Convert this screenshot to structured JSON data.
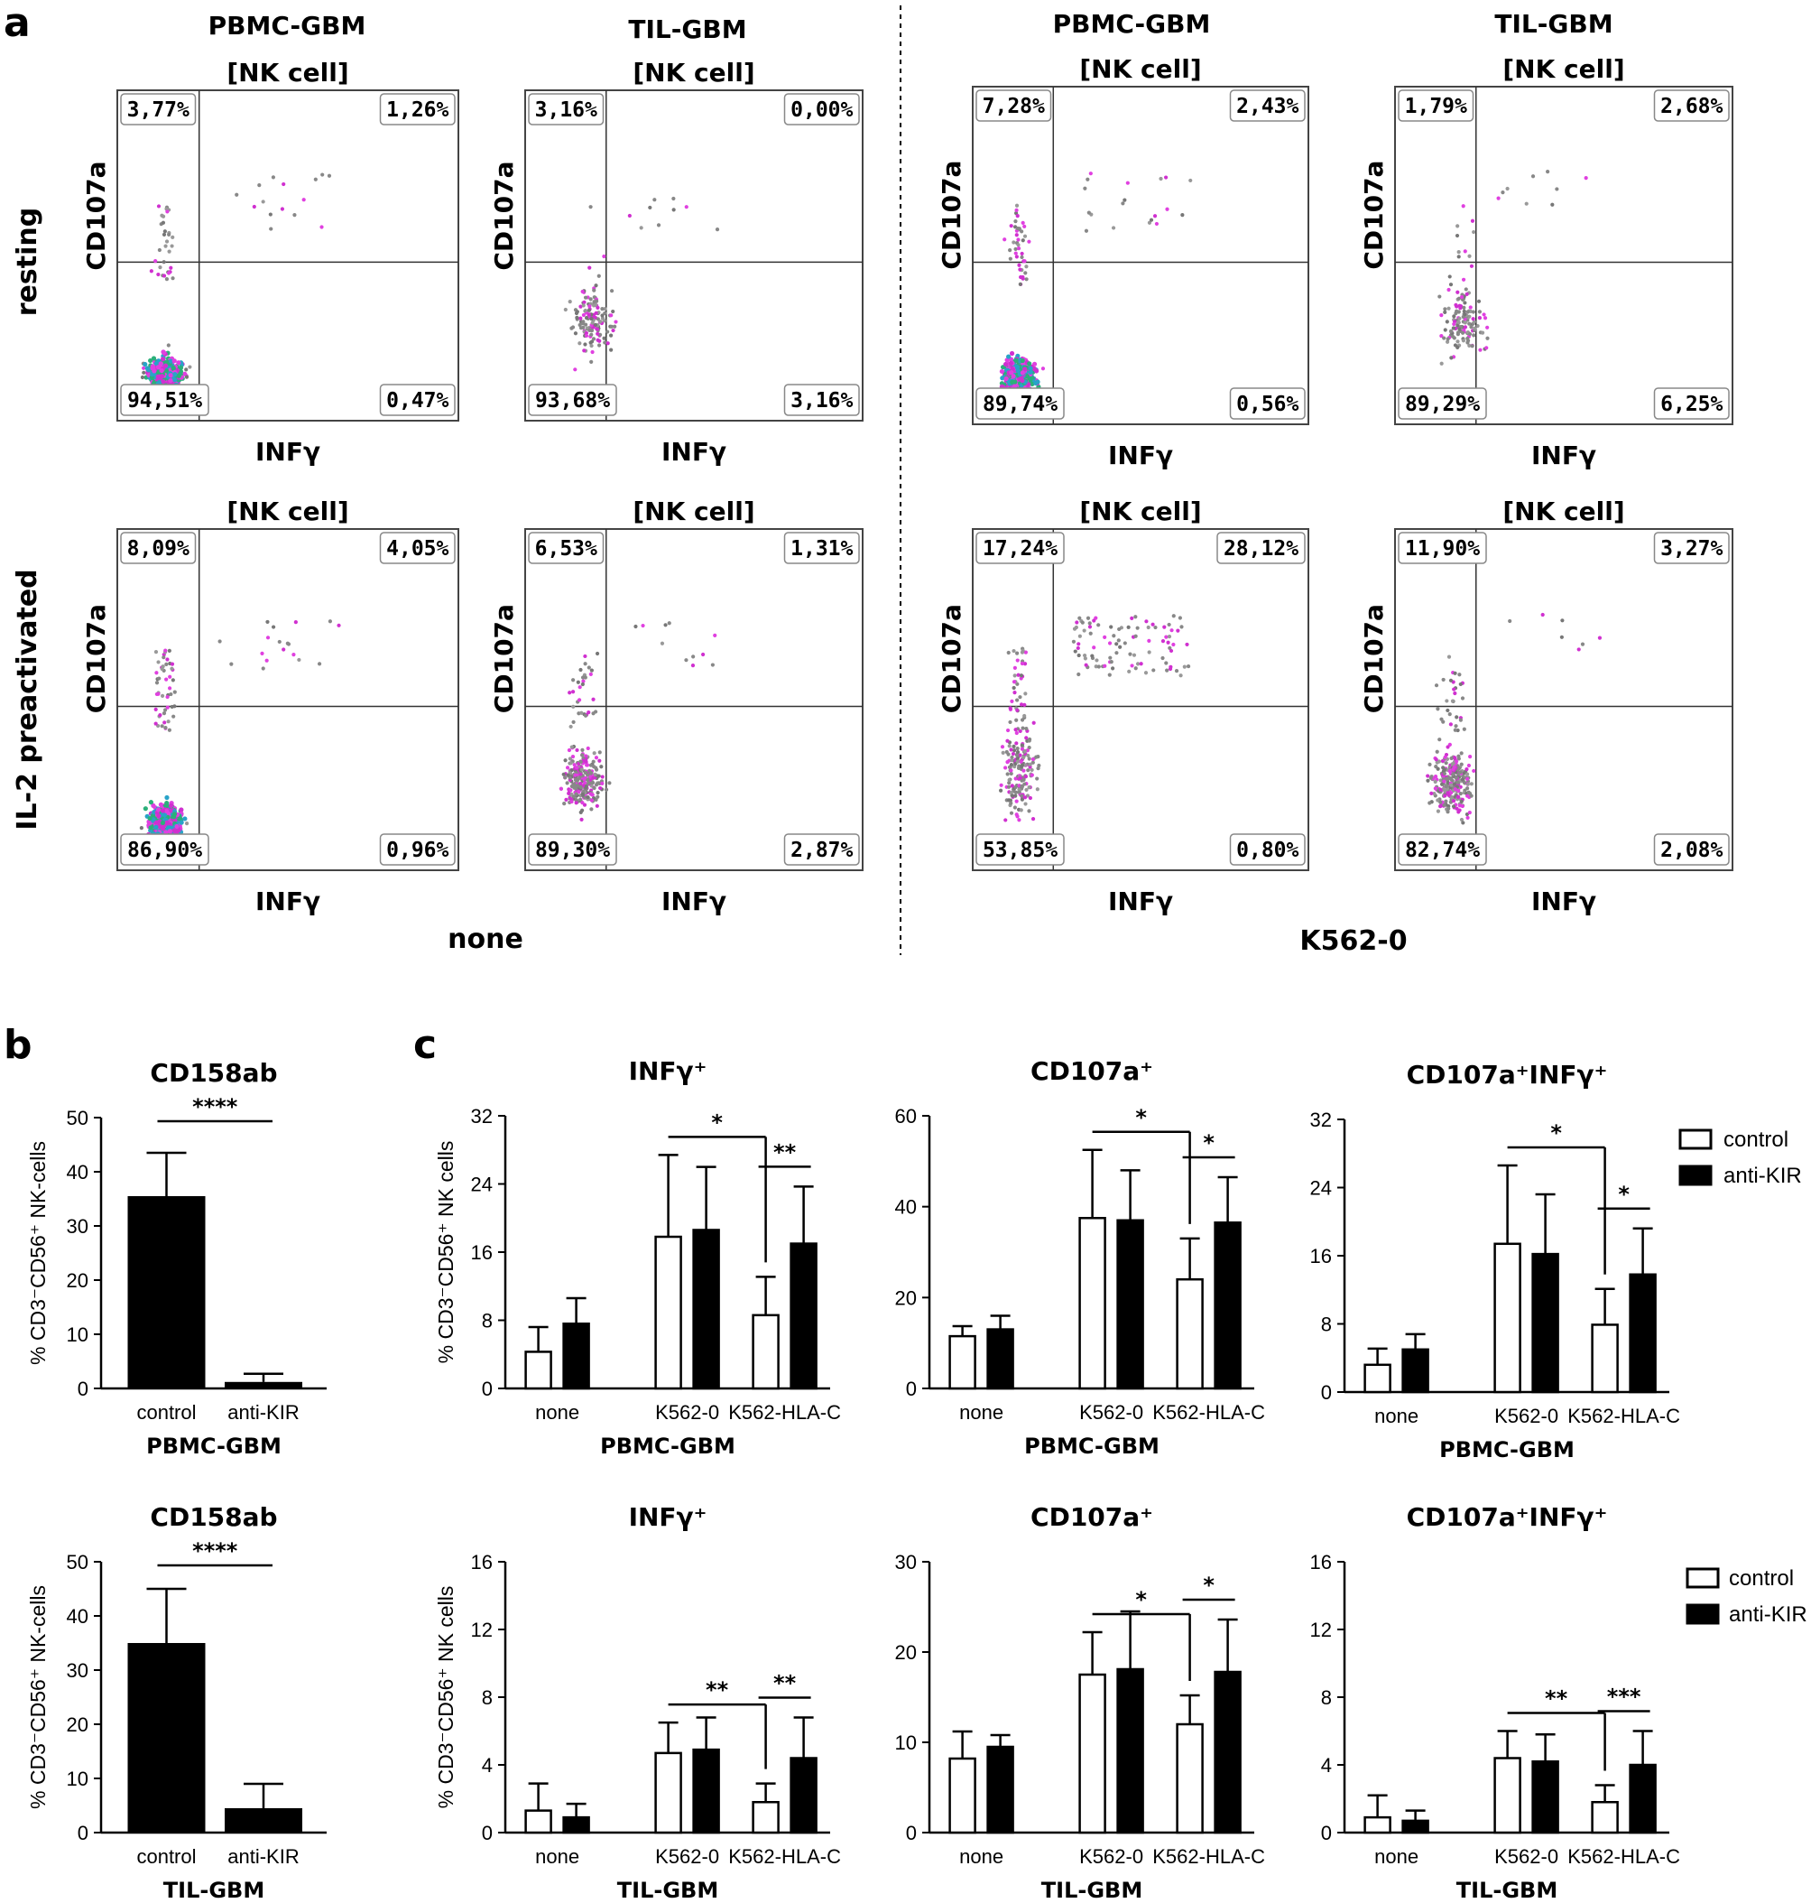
{
  "panel_labels": {
    "a": "a",
    "b": "b",
    "c": "c"
  },
  "panel_a": {
    "condition_labels": [
      "none",
      "K562-0"
    ],
    "row_labels": [
      "resting",
      "IL-2 preactivated"
    ],
    "col_headers": [
      "PBMC-GBM",
      "TIL-GBM",
      "PBMC-GBM",
      "TIL-GBM"
    ],
    "plot_title": "[NK cell]",
    "x_label": "INFγ",
    "y_label": "CD107a",
    "plots": [
      {
        "quadrants": [
          "3,77%",
          "1,26%",
          "94,51%",
          "0,47%"
        ],
        "density": "dense"
      },
      {
        "quadrants": [
          "3,16%",
          "0,00%",
          "93,68%",
          "3,16%"
        ],
        "density": "sparse"
      },
      {
        "quadrants": [
          "7,28%",
          "2,43%",
          "89,74%",
          "0,56%"
        ],
        "density": "dense"
      },
      {
        "quadrants": [
          "1,79%",
          "2,68%",
          "89,29%",
          "6,25%"
        ],
        "density": "sparse"
      },
      {
        "quadrants": [
          "8,09%",
          "4,05%",
          "86,90%",
          "0,96%"
        ],
        "density": "dense"
      },
      {
        "quadrants": [
          "6,53%",
          "1,31%",
          "89,30%",
          "2,87%"
        ],
        "density": "medium"
      },
      {
        "quadrants": [
          "17,24%",
          "28,12%",
          "53,85%",
          "0,80%"
        ],
        "density": "activated"
      },
      {
        "quadrants": [
          "11,90%",
          "3,27%",
          "82,74%",
          "2,08%"
        ],
        "density": "medium"
      }
    ]
  },
  "legend": {
    "items": [
      "control",
      "anti-KIR"
    ],
    "colors": [
      "#ffffff",
      "#000000"
    ]
  },
  "chart_data": [
    {
      "type": "bar",
      "panel": "b",
      "title": "CD158ab",
      "xlabel": "PBMC-GBM",
      "ylabel": "% CD3⁻CD56⁺ NK-cells",
      "categories": [
        "control",
        "anti-KIR"
      ],
      "values": [
        35.5,
        1.2
      ],
      "errors": [
        8,
        1.5
      ],
      "ylim": [
        0,
        50
      ],
      "yticks": [
        "0",
        "10",
        "20",
        "30",
        "40",
        "50"
      ],
      "significance": [
        {
          "from": "control",
          "to": "anti-KIR",
          "label": "****"
        }
      ]
    },
    {
      "type": "bar",
      "panel": "b",
      "title": "CD158ab",
      "xlabel": "TIL-GBM",
      "ylabel": "% CD3⁻CD56⁺ NK-cells",
      "categories": [
        "control",
        "anti-KIR"
      ],
      "values": [
        35,
        4.5
      ],
      "errors": [
        10,
        4.5
      ],
      "ylim": [
        0,
        50
      ],
      "yticks": [
        "0",
        "10",
        "20",
        "30",
        "40",
        "50"
      ],
      "significance": [
        {
          "from": "control",
          "to": "anti-KIR",
          "label": "****"
        }
      ]
    },
    {
      "type": "bar",
      "panel": "c",
      "title": "INFγ⁺",
      "xlabel": "PBMC-GBM",
      "ylabel": "% CD3⁻CD56⁺ NK cells",
      "categories": [
        "none",
        "K562-0",
        "K562-HLA-C"
      ],
      "series": [
        {
          "name": "control",
          "values": [
            4.3,
            17.8,
            8.6
          ],
          "errors": [
            2.9,
            9.6,
            4.5
          ]
        },
        {
          "name": "anti-KIR",
          "values": [
            7.6,
            18.6,
            17
          ],
          "errors": [
            3,
            7.4,
            6.7
          ]
        }
      ],
      "ylim": [
        0,
        32
      ],
      "yticks": [
        "0",
        "8",
        "16",
        "24",
        "32"
      ],
      "significance": [
        {
          "from": "K562-0 control",
          "to": "K562-HLA-C control",
          "label": "*"
        },
        {
          "from": "K562-HLA-C control",
          "to": "K562-HLA-C anti-KIR",
          "label": "**"
        }
      ]
    },
    {
      "type": "bar",
      "panel": "c",
      "title": "CD107a⁺",
      "xlabel": "PBMC-GBM",
      "ylabel": "",
      "categories": [
        "none",
        "K562-0",
        "K562-HLA-C"
      ],
      "series": [
        {
          "name": "control",
          "values": [
            11.5,
            37.5,
            24
          ],
          "errors": [
            2.2,
            15,
            9
          ]
        },
        {
          "name": "anti-KIR",
          "values": [
            13,
            37,
            36.5
          ],
          "errors": [
            3,
            11,
            10
          ]
        }
      ],
      "ylim": [
        0,
        60
      ],
      "yticks": [
        "0",
        "20",
        "40",
        "60"
      ],
      "significance": [
        {
          "from": "K562-0 control",
          "to": "K562-HLA-C control",
          "label": "*"
        },
        {
          "from": "K562-HLA-C control",
          "to": "K562-HLA-C anti-KIR",
          "label": "*"
        }
      ]
    },
    {
      "type": "bar",
      "panel": "c",
      "title": "CD107a⁺INFγ⁺",
      "xlabel": "PBMC-GBM",
      "ylabel": "",
      "categories": [
        "none",
        "K562-0",
        "K562-HLA-C"
      ],
      "series": [
        {
          "name": "control",
          "values": [
            3.2,
            17.4,
            7.9
          ],
          "errors": [
            1.9,
            9.2,
            4.2
          ]
        },
        {
          "name": "anti-KIR",
          "values": [
            5,
            16.2,
            13.8
          ],
          "errors": [
            1.8,
            7,
            5.4
          ]
        }
      ],
      "ylim": [
        0,
        32
      ],
      "yticks": [
        "0",
        "8",
        "16",
        "24",
        "32"
      ],
      "significance": [
        {
          "from": "K562-0 control",
          "to": "K562-HLA-C control",
          "label": "*"
        },
        {
          "from": "K562-HLA-C control",
          "to": "K562-HLA-C anti-KIR",
          "label": "*"
        }
      ]
    },
    {
      "type": "bar",
      "panel": "c",
      "title": "INFγ⁺",
      "xlabel": "TIL-GBM",
      "ylabel": "% CD3⁻CD56⁺ NK cells",
      "categories": [
        "none",
        "K562-0",
        "K562-HLA-C"
      ],
      "series": [
        {
          "name": "control",
          "values": [
            1.3,
            4.7,
            1.8
          ],
          "errors": [
            1.6,
            1.8,
            1.1
          ]
        },
        {
          "name": "anti-KIR",
          "values": [
            0.9,
            4.9,
            4.4
          ],
          "errors": [
            0.8,
            1.9,
            2.4
          ]
        }
      ],
      "ylim": [
        0,
        16
      ],
      "yticks": [
        "0",
        "4",
        "8",
        "12",
        "16"
      ],
      "significance": [
        {
          "from": "K562-0 control",
          "to": "K562-HLA-C control",
          "label": "**"
        },
        {
          "from": "K562-HLA-C control",
          "to": "K562-HLA-C anti-KIR",
          "label": "**"
        }
      ]
    },
    {
      "type": "bar",
      "panel": "c",
      "title": "CD107a⁺",
      "xlabel": "TIL-GBM",
      "ylabel": "",
      "categories": [
        "none",
        "K562-0",
        "K562-HLA-C"
      ],
      "series": [
        {
          "name": "control",
          "values": [
            8.2,
            17.5,
            12
          ],
          "errors": [
            3,
            4.7,
            3.2
          ]
        },
        {
          "name": "anti-KIR",
          "values": [
            9.5,
            18.1,
            17.8
          ],
          "errors": [
            1.3,
            6.4,
            5.8
          ]
        }
      ],
      "ylim": [
        0,
        30
      ],
      "yticks": [
        "0",
        "10",
        "20",
        "30"
      ],
      "significance": [
        {
          "from": "K562-0 control",
          "to": "K562-HLA-C control",
          "label": "*"
        },
        {
          "from": "K562-HLA-C control",
          "to": "K562-HLA-C anti-KIR",
          "label": "*"
        }
      ]
    },
    {
      "type": "bar",
      "panel": "c",
      "title": "CD107a⁺INFγ⁺",
      "xlabel": "TIL-GBM",
      "ylabel": "",
      "categories": [
        "none",
        "K562-0",
        "K562-HLA-C"
      ],
      "series": [
        {
          "name": "control",
          "values": [
            0.9,
            4.4,
            1.8
          ],
          "errors": [
            1.3,
            1.6,
            1
          ]
        },
        {
          "name": "anti-KIR",
          "values": [
            0.7,
            4.2,
            4
          ],
          "errors": [
            0.6,
            1.6,
            2
          ]
        }
      ],
      "ylim": [
        0,
        16
      ],
      "yticks": [
        "0",
        "4",
        "8",
        "12",
        "16"
      ],
      "significance": [
        {
          "from": "K562-0 control",
          "to": "K562-HLA-C control",
          "label": "**"
        },
        {
          "from": "K562-HLA-C control",
          "to": "K562-HLA-C anti-KIR",
          "label": "***"
        }
      ]
    }
  ]
}
